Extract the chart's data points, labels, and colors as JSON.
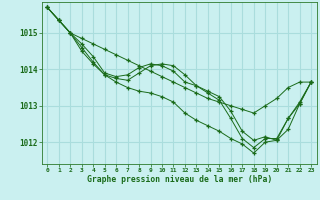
{
  "xlabel": "Graphe pression niveau de la mer (hPa)",
  "bg_color": "#caf0f0",
  "grid_color": "#aadddd",
  "line_color": "#1a6b1a",
  "marker_color": "#1a6b1a",
  "ylim": [
    1011.4,
    1015.85
  ],
  "xlim": [
    -0.5,
    23.5
  ],
  "yticks": [
    1012,
    1013,
    1014,
    1015
  ],
  "xticks": [
    0,
    1,
    2,
    3,
    4,
    5,
    6,
    7,
    8,
    9,
    10,
    11,
    12,
    13,
    14,
    15,
    16,
    17,
    18,
    19,
    20,
    21,
    22,
    23
  ],
  "series": [
    [
      1015.7,
      1015.35,
      1015.0,
      1014.85,
      1014.7,
      1014.55,
      1014.4,
      1014.25,
      1014.1,
      1013.95,
      1013.8,
      1013.65,
      1013.5,
      1013.35,
      1013.2,
      1013.1,
      1013.0,
      1012.9,
      1012.8,
      1013.0,
      1013.2,
      1013.5,
      1013.65,
      1013.65
    ],
    [
      1015.7,
      1015.35,
      1015.0,
      1014.7,
      1014.35,
      1013.9,
      1013.8,
      1013.85,
      1014.05,
      1014.15,
      1014.1,
      1013.95,
      1013.65,
      1013.55,
      1013.4,
      1013.25,
      1012.85,
      1012.3,
      1012.05,
      1012.15,
      1012.05,
      1012.65,
      1013.1,
      1013.65
    ],
    [
      1015.7,
      1015.35,
      1015.0,
      1014.6,
      1014.2,
      1013.85,
      1013.75,
      1013.7,
      1013.9,
      1014.1,
      1014.15,
      1014.1,
      1013.85,
      1013.55,
      1013.35,
      1013.15,
      1012.65,
      1012.1,
      1011.85,
      1012.1,
      1012.1,
      1012.65,
      1013.05,
      1013.65
    ],
    [
      1015.7,
      1015.35,
      1015.0,
      1014.5,
      1014.15,
      1013.85,
      1013.65,
      1013.5,
      1013.4,
      1013.35,
      1013.25,
      1013.1,
      1012.8,
      1012.6,
      1012.45,
      1012.3,
      1012.1,
      1011.95,
      1011.7,
      1012.0,
      1012.05,
      1012.35,
      1013.05,
      1013.65
    ]
  ]
}
